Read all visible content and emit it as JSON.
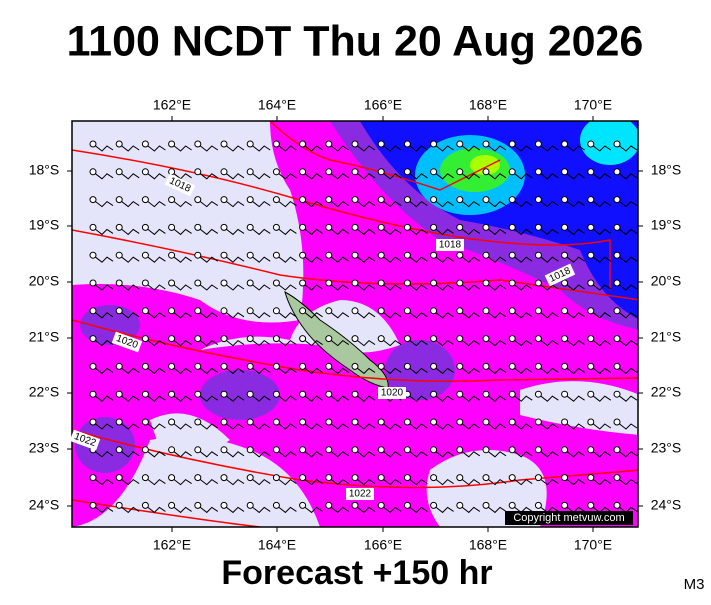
{
  "header": {
    "title": "1100 NCDT Thu 20 Aug 2026"
  },
  "map": {
    "lon_labels": [
      "162°E",
      "164°E",
      "166°E",
      "168°E",
      "170°E"
    ],
    "lat_labels": [
      "18°S",
      "19°S",
      "20°S",
      "21°S",
      "22°S",
      "23°S",
      "24°S"
    ],
    "isobar_labels": [
      "1018",
      "1018",
      "1018",
      "1020",
      "1020",
      "1022",
      "1022"
    ],
    "copyright": "Copyright metvuw.com"
  },
  "footer": {
    "forecast": "Forecast +150 hr",
    "code": "M3"
  }
}
